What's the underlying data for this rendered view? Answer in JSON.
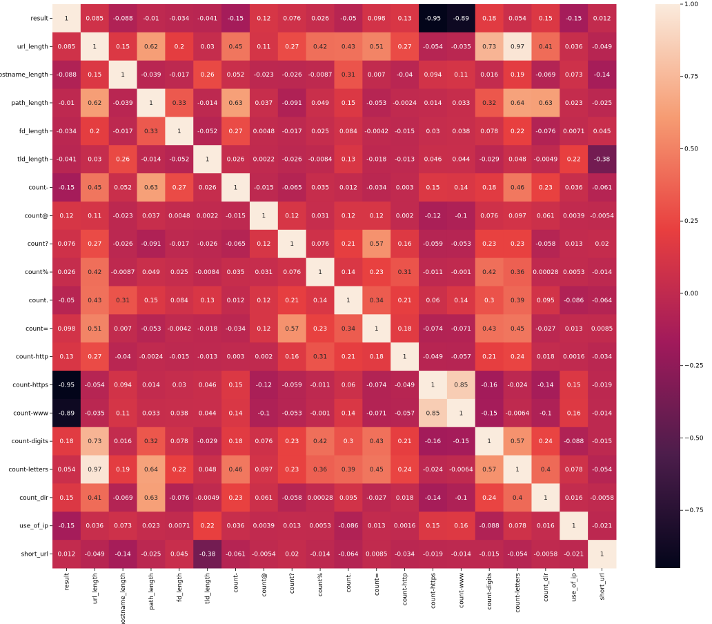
{
  "chart_data": {
    "type": "heatmap",
    "title": "",
    "xlabel": "",
    "ylabel": "",
    "labels": [
      "result",
      "url_length",
      "hostname_length",
      "path_length",
      "fd_length",
      "tld_length",
      "count-",
      "count@",
      "count?",
      "count%",
      "count.",
      "count=",
      "count-http",
      "count-https",
      "count-www",
      "count-digits",
      "count-letters",
      "count_dir",
      "use_of_ip",
      "short_url"
    ],
    "matrix_text": [
      [
        "1",
        "0.085",
        "-0.088",
        "-0.01",
        "-0.034",
        "-0.041",
        "-0.15",
        "0.12",
        "0.076",
        "0.026",
        "-0.05",
        "0.098",
        "0.13",
        "-0.95",
        "-0.89",
        "0.18",
        "0.054",
        "0.15",
        "-0.15",
        "0.012"
      ],
      [
        "0.085",
        "1",
        "0.15",
        "0.62",
        "0.2",
        "0.03",
        "0.45",
        "0.11",
        "0.27",
        "0.42",
        "0.43",
        "0.51",
        "0.27",
        "-0.054",
        "-0.035",
        "0.73",
        "0.97",
        "0.41",
        "0.036",
        "-0.049"
      ],
      [
        "-0.088",
        "0.15",
        "1",
        "-0.039",
        "-0.017",
        "0.26",
        "0.052",
        "-0.023",
        "-0.026",
        "-0.0087",
        "0.31",
        "0.007",
        "-0.04",
        "0.094",
        "0.11",
        "0.016",
        "0.19",
        "-0.069",
        "0.073",
        "-0.14"
      ],
      [
        "-0.01",
        "0.62",
        "-0.039",
        "1",
        "0.33",
        "-0.014",
        "0.63",
        "0.037",
        "-0.091",
        "0.049",
        "0.15",
        "-0.053",
        "-0.0024",
        "0.014",
        "0.033",
        "0.32",
        "0.64",
        "0.63",
        "0.023",
        "-0.025"
      ],
      [
        "-0.034",
        "0.2",
        "-0.017",
        "0.33",
        "1",
        "-0.052",
        "0.27",
        "0.0048",
        "-0.017",
        "0.025",
        "0.084",
        "-0.0042",
        "-0.015",
        "0.03",
        "0.038",
        "0.078",
        "0.22",
        "-0.076",
        "0.0071",
        "0.045"
      ],
      [
        "-0.041",
        "0.03",
        "0.26",
        "-0.014",
        "-0.052",
        "1",
        "0.026",
        "0.0022",
        "-0.026",
        "-0.0084",
        "0.13",
        "-0.018",
        "-0.013",
        "0.046",
        "0.044",
        "-0.029",
        "0.048",
        "-0.0049",
        "0.22",
        "-0.38"
      ],
      [
        "-0.15",
        "0.45",
        "0.052",
        "0.63",
        "0.27",
        "0.026",
        "1",
        "-0.015",
        "-0.065",
        "0.035",
        "0.012",
        "-0.034",
        "0.003",
        "0.15",
        "0.14",
        "0.18",
        "0.46",
        "0.23",
        "0.036",
        "-0.061"
      ],
      [
        "0.12",
        "0.11",
        "-0.023",
        "0.037",
        "0.0048",
        "0.0022",
        "-0.015",
        "1",
        "0.12",
        "0.031",
        "0.12",
        "0.12",
        "0.002",
        "-0.12",
        "-0.1",
        "0.076",
        "0.097",
        "0.061",
        "0.0039",
        "-0.0054"
      ],
      [
        "0.076",
        "0.27",
        "-0.026",
        "-0.091",
        "-0.017",
        "-0.026",
        "-0.065",
        "0.12",
        "1",
        "0.076",
        "0.21",
        "0.57",
        "0.16",
        "-0.059",
        "-0.053",
        "0.23",
        "0.23",
        "-0.058",
        "0.013",
        "0.02"
      ],
      [
        "0.026",
        "0.42",
        "-0.0087",
        "0.049",
        "0.025",
        "-0.0084",
        "0.035",
        "0.031",
        "0.076",
        "1",
        "0.14",
        "0.23",
        "0.31",
        "-0.011",
        "-0.001",
        "0.42",
        "0.36",
        "0.00028",
        "0.0053",
        "-0.014"
      ],
      [
        "-0.05",
        "0.43",
        "0.31",
        "0.15",
        "0.084",
        "0.13",
        "0.012",
        "0.12",
        "0.21",
        "0.14",
        "1",
        "0.34",
        "0.21",
        "0.06",
        "0.14",
        "0.3",
        "0.39",
        "0.095",
        "-0.086",
        "-0.064"
      ],
      [
        "0.098",
        "0.51",
        "0.007",
        "-0.053",
        "-0.0042",
        "-0.018",
        "-0.034",
        "0.12",
        "0.57",
        "0.23",
        "0.34",
        "1",
        "0.18",
        "-0.074",
        "-0.071",
        "0.43",
        "0.45",
        "-0.027",
        "0.013",
        "0.0085"
      ],
      [
        "0.13",
        "0.27",
        "-0.04",
        "-0.0024",
        "-0.015",
        "-0.013",
        "0.003",
        "0.002",
        "0.16",
        "0.31",
        "0.21",
        "0.18",
        "1",
        "-0.049",
        "-0.057",
        "0.21",
        "0.24",
        "0.018",
        "0.0016",
        "-0.034"
      ],
      [
        "-0.95",
        "-0.054",
        "0.094",
        "0.014",
        "0.03",
        "0.046",
        "0.15",
        "-0.12",
        "-0.059",
        "-0.011",
        "0.06",
        "-0.074",
        "-0.049",
        "1",
        "0.85",
        "-0.16",
        "-0.024",
        "-0.14",
        "0.15",
        "-0.019"
      ],
      [
        "-0.89",
        "-0.035",
        "0.11",
        "0.033",
        "0.038",
        "0.044",
        "0.14",
        "-0.1",
        "-0.053",
        "-0.001",
        "0.14",
        "-0.071",
        "-0.057",
        "0.85",
        "1",
        "-0.15",
        "-0.0064",
        "-0.1",
        "0.16",
        "-0.014"
      ],
      [
        "0.18",
        "0.73",
        "0.016",
        "0.32",
        "0.078",
        "-0.029",
        "0.18",
        "0.076",
        "0.23",
        "0.42",
        "0.3",
        "0.43",
        "0.21",
        "-0.16",
        "-0.15",
        "1",
        "0.57",
        "0.24",
        "-0.088",
        "-0.015"
      ],
      [
        "0.054",
        "0.97",
        "0.19",
        "0.64",
        "0.22",
        "0.048",
        "0.46",
        "0.097",
        "0.23",
        "0.36",
        "0.39",
        "0.45",
        "0.24",
        "-0.024",
        "-0.0064",
        "0.57",
        "1",
        "0.4",
        "0.078",
        "-0.054"
      ],
      [
        "0.15",
        "0.41",
        "-0.069",
        "0.63",
        "-0.076",
        "-0.0049",
        "0.23",
        "0.061",
        "-0.058",
        "0.00028",
        "0.095",
        "-0.027",
        "0.018",
        "-0.14",
        "-0.1",
        "0.24",
        "0.4",
        "1",
        "0.016",
        "-0.0058"
      ],
      [
        "-0.15",
        "0.036",
        "0.073",
        "0.023",
        "0.0071",
        "0.22",
        "0.036",
        "0.0039",
        "0.013",
        "0.0053",
        "-0.086",
        "0.013",
        "0.0016",
        "0.15",
        "0.16",
        "-0.088",
        "0.078",
        "0.016",
        "1",
        "-0.021"
      ],
      [
        "0.012",
        "-0.049",
        "-0.14",
        "-0.025",
        "0.045",
        "-0.38",
        "-0.061",
        "-0.0054",
        "0.02",
        "-0.014",
        "-0.064",
        "0.0085",
        "-0.034",
        "-0.019",
        "-0.014",
        "-0.015",
        "-0.054",
        "-0.0058",
        "-0.021",
        "1"
      ]
    ],
    "colorbar": {
      "min": -0.95,
      "max": 1.0,
      "ticks": [
        1.0,
        0.75,
        0.5,
        0.25,
        0.0,
        -0.25,
        -0.5,
        -0.75
      ],
      "tick_labels": [
        "1.00",
        "0.75",
        "0.50",
        "0.25",
        "0.00",
        "−0.25",
        "−0.50",
        "−0.75"
      ],
      "colormap": "rocket",
      "stops": [
        "#03051a",
        "#4c1d4b",
        "#a11a5b",
        "#e83f3f",
        "#f69c73",
        "#faebdd"
      ]
    },
    "grid": false,
    "legend": "colorbar-right"
  }
}
